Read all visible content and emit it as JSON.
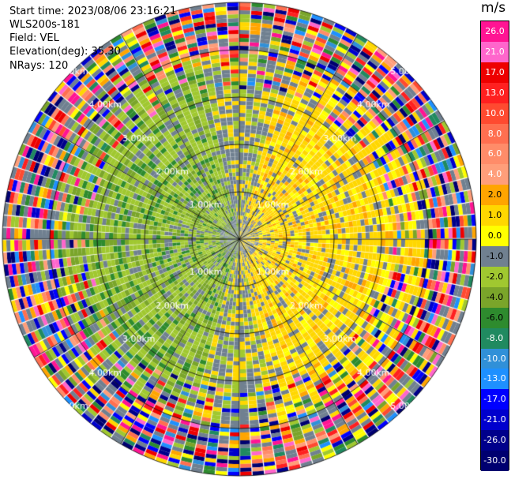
{
  "info": {
    "start_time": "Start time: 2023/08/06 23:16:21",
    "instrument": "WLS200s-181",
    "field": "Field: VEL",
    "elevation": "Elevation(deg): 35.30",
    "nrays": "NRays: 120"
  },
  "chart_data": {
    "type": "heatmap",
    "projection": "polar-ppi",
    "field": "VEL",
    "units": "m/s",
    "nrays": 120,
    "elevation_deg": 35.3,
    "range_rings_km": [
      1.0,
      2.0,
      3.0,
      4.0,
      5.0
    ],
    "range_ring_labels": [
      "1.00km",
      "2.00km",
      "3.00km",
      "4.00km",
      "5.00km"
    ],
    "max_range_km": 5.0,
    "colorbar": {
      "title": "m/s",
      "tick_labels": [
        "26.0",
        "21.0",
        "17.0",
        "13.0",
        "10.0",
        "8.0",
        "6.0",
        "4.0",
        "2.0",
        "1.0",
        "0.0",
        "-1.0",
        "-2.0",
        "-4.0",
        "-6.0",
        "-8.0",
        "-10.0",
        "-13.0",
        "-17.0",
        "-21.0",
        "-26.0",
        "-30.0"
      ],
      "colors": [
        "#ff1493",
        "#ff66cc",
        "#ee0000",
        "#ff2020",
        "#ff4a30",
        "#ff6f50",
        "#ff8c69",
        "#ff9e7a",
        "#ffa500",
        "#ffd700",
        "#ffff00",
        "#708090",
        "#a0c830",
        "#7aa52a",
        "#2e8b2e",
        "#208a60",
        "#3090d8",
        "#1e90ff",
        "#0000ff",
        "#0000cd",
        "#00008b",
        "#000070"
      ]
    }
  }
}
